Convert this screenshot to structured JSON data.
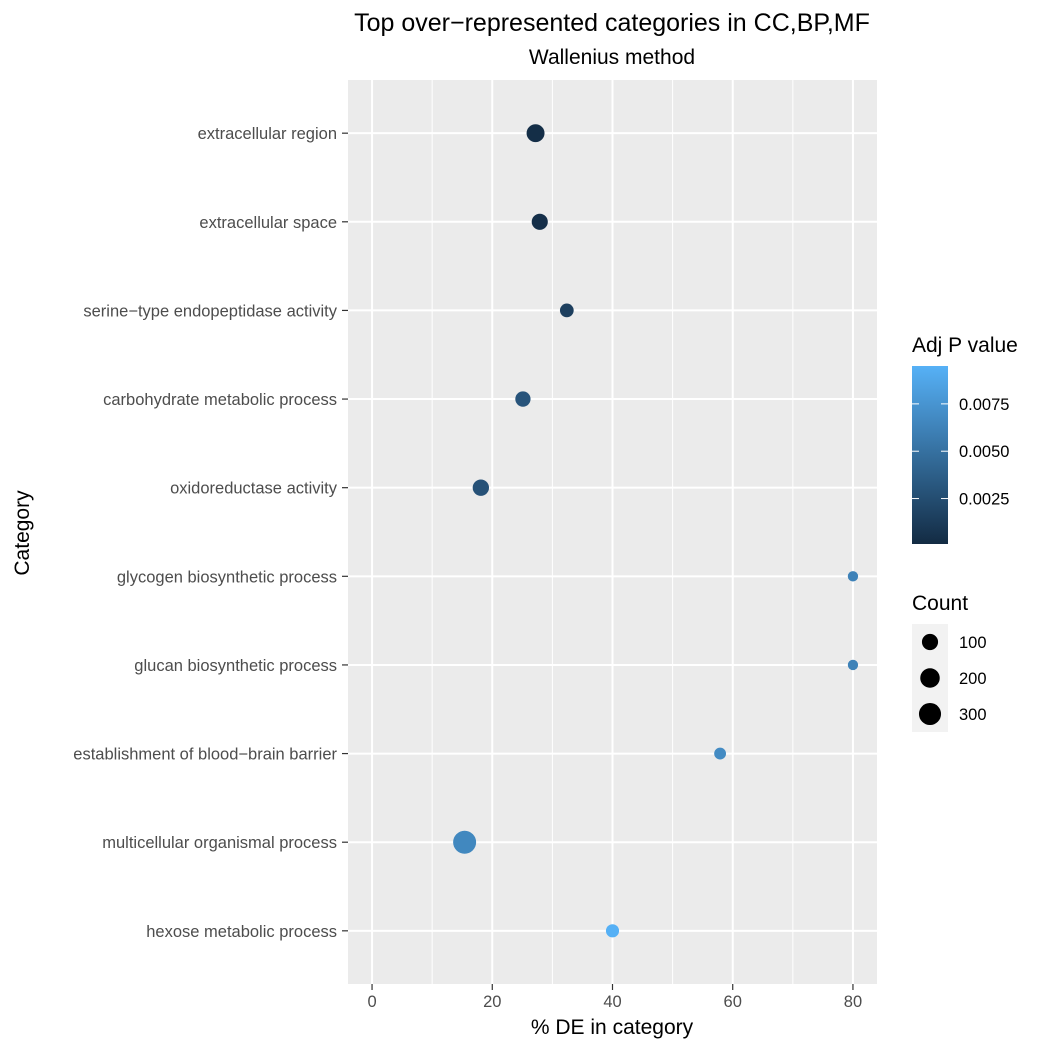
{
  "chart_data": {
    "type": "scatter",
    "title": "Top over−represented categories in CC,BP,MF",
    "subtitle": "Wallenius  method",
    "xlabel": "% DE in category",
    "ylabel": "Category",
    "xlim": [
      -4,
      84
    ],
    "x_ticks": [
      0,
      20,
      40,
      60,
      80
    ],
    "x_tick_labels": [
      "0",
      "20",
      "40",
      "60",
      "80"
    ],
    "grid": true,
    "categories": [
      "extracellular region",
      "extracellular space",
      "serine−type endopeptidase activity",
      "carbohydrate metabolic process",
      "oxidoreductase activity",
      "glycogen biosynthetic process",
      "glucan biosynthetic process",
      "establishment of blood−brain barrier",
      "multicellular organismal process",
      "hexose metabolic process"
    ],
    "points": [
      {
        "category": "extracellular region",
        "x": 27.2,
        "count": 150,
        "adj_p": 0.0003
      },
      {
        "category": "extracellular space",
        "x": 27.9,
        "count": 100,
        "adj_p": 0.0004
      },
      {
        "category": "serine−type endopeptidase activity",
        "x": 32.4,
        "count": 50,
        "adj_p": 0.0015
      },
      {
        "category": "carbohydrate metabolic process",
        "x": 25.1,
        "count": 80,
        "adj_p": 0.003
      },
      {
        "category": "oxidoreductase activity",
        "x": 18.1,
        "count": 105,
        "adj_p": 0.0028
      },
      {
        "category": "glycogen biosynthetic process",
        "x": 80.0,
        "count": 8,
        "adj_p": 0.0062
      },
      {
        "category": "glucan biosynthetic process",
        "x": 80.0,
        "count": 8,
        "adj_p": 0.0062
      },
      {
        "category": "establishment of blood−brain barrier",
        "x": 57.9,
        "count": 22,
        "adj_p": 0.0068
      },
      {
        "category": "multicellular organismal process",
        "x": 15.4,
        "count": 340,
        "adj_p": 0.0066
      },
      {
        "category": "hexose metabolic process",
        "x": 40.0,
        "count": 40,
        "adj_p": 0.0094
      }
    ],
    "legend_color": {
      "title": "Adj P value",
      "range": [
        0.0001,
        0.0095
      ],
      "breaks": [
        0.0025,
        0.005,
        0.0075
      ],
      "labels": [
        "0.0025",
        "0.0050",
        "0.0075"
      ],
      "low_color": "#132B43",
      "high_color": "#56B1F7"
    },
    "legend_size": {
      "title": "Count",
      "breaks": [
        100,
        200,
        300
      ],
      "labels": [
        "100",
        "200",
        "300"
      ],
      "color": "#000000"
    },
    "legend_placement": "right",
    "panel_color": "#ebebeb",
    "gridline_color": "#ffffff"
  }
}
